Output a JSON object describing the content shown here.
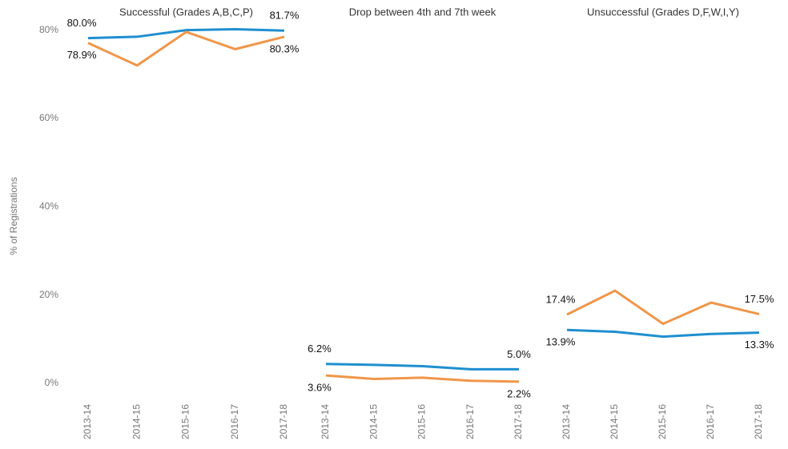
{
  "chart_data": [
    {
      "type": "line",
      "title": "Successful (Grades A,B,C,P)",
      "ylabel": "% of Registrations",
      "categories": [
        "2013-14",
        "2014-15",
        "2015-16",
        "2016-17",
        "2017-18"
      ],
      "ylim": [
        0,
        85
      ],
      "yticks": [
        {
          "value": 0,
          "label": "0%"
        },
        {
          "value": 20,
          "label": "20%"
        },
        {
          "value": 40,
          "label": "40%"
        },
        {
          "value": 60,
          "label": "60%"
        },
        {
          "value": 80,
          "label": "80%"
        }
      ],
      "series": [
        {
          "color": "#1f8fcf",
          "values": [
            80.0,
            80.3,
            81.8,
            82.0,
            81.7
          ],
          "value_labels": [
            "80.0%",
            null,
            null,
            null,
            "81.7%"
          ]
        },
        {
          "color": "#f0964a",
          "values": [
            78.9,
            73.8,
            81.4,
            77.5,
            80.3
          ],
          "value_labels": [
            "78.9%",
            null,
            null,
            null,
            "80.3%"
          ]
        }
      ]
    },
    {
      "type": "line",
      "title": "Drop between 4th and 7th week",
      "categories": [
        "2013-14",
        "2014-15",
        "2015-16",
        "2016-17",
        "2017-18"
      ],
      "ylim": [
        0,
        85
      ],
      "series": [
        {
          "color": "#1f8fcf",
          "values": [
            6.2,
            6.0,
            5.7,
            5.0,
            5.0
          ],
          "value_labels": [
            "6.2%",
            null,
            null,
            null,
            "5.0%"
          ]
        },
        {
          "color": "#f0964a",
          "values": [
            3.6,
            2.8,
            3.1,
            2.4,
            2.2
          ],
          "value_labels": [
            "3.6%",
            null,
            null,
            null,
            "2.2%"
          ]
        }
      ]
    },
    {
      "type": "line",
      "title": "Unsuccessful (Grades D,F,W,I,Y)",
      "categories": [
        "2013-14",
        "2014-15",
        "2015-16",
        "2016-17",
        "2017-18"
      ],
      "ylim": [
        0,
        85
      ],
      "series": [
        {
          "color": "#1f8fcf",
          "values": [
            13.9,
            13.5,
            12.4,
            13.0,
            13.3
          ],
          "value_labels": [
            "13.9%",
            null,
            null,
            null,
            "13.3%"
          ]
        },
        {
          "color": "#f0964a",
          "values": [
            17.4,
            22.8,
            15.3,
            20.1,
            17.5
          ],
          "value_labels": [
            "17.4%",
            null,
            null,
            null,
            "17.5%"
          ]
        }
      ]
    }
  ]
}
